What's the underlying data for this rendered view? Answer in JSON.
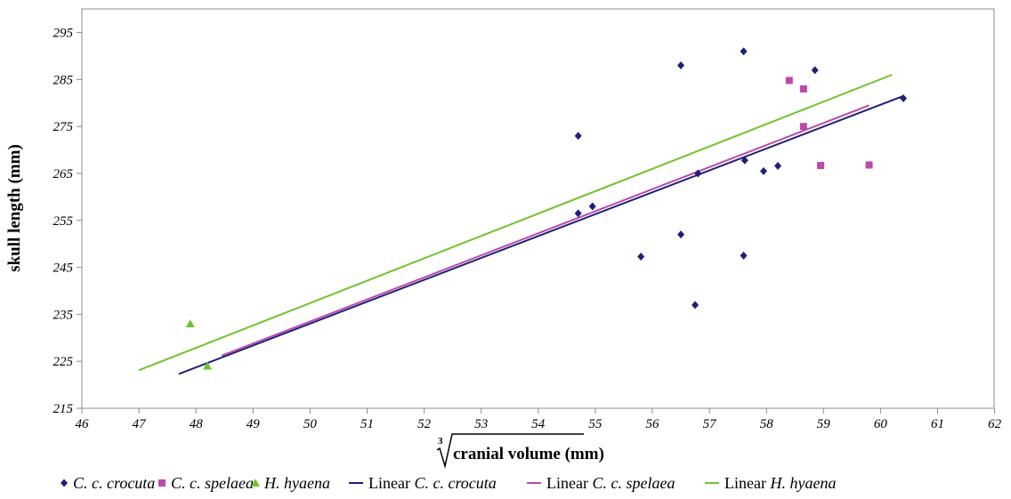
{
  "chart_data": {
    "type": "scatter",
    "title": "",
    "xlabel": "cranial volume (mm)",
    "xlabel_root_index": "3",
    "ylabel": "skull length (mm)",
    "xlim": [
      46,
      62
    ],
    "ylim": [
      215,
      300
    ],
    "xticks": [
      46,
      47,
      48,
      49,
      50,
      51,
      52,
      53,
      54,
      55,
      56,
      57,
      58,
      59,
      60,
      61,
      62
    ],
    "yticks": [
      215,
      225,
      235,
      245,
      255,
      265,
      275,
      285,
      295
    ],
    "grid": false,
    "legend_position": "bottom",
    "series": [
      {
        "name": "C. c. crocuta",
        "marker": "diamond",
        "color": "#1f1f7a",
        "points": [
          [
            54.7,
            273
          ],
          [
            54.7,
            256.5
          ],
          [
            54.95,
            258
          ],
          [
            55.8,
            247.3
          ],
          [
            56.5,
            252
          ],
          [
            56.5,
            288
          ],
          [
            56.75,
            237
          ],
          [
            56.8,
            265
          ],
          [
            57.6,
            247.5
          ],
          [
            57.6,
            291
          ],
          [
            57.62,
            267.8
          ],
          [
            57.95,
            265.5
          ],
          [
            58.2,
            266.6
          ],
          [
            58.85,
            287
          ],
          [
            60.4,
            281
          ]
        ]
      },
      {
        "name": "C. c. spelaea",
        "marker": "square",
        "color": "#bb4aa8",
        "points": [
          [
            58.4,
            284.8
          ],
          [
            58.65,
            283
          ],
          [
            58.65,
            275
          ],
          [
            58.95,
            266.7
          ],
          [
            59.8,
            266.8
          ]
        ]
      },
      {
        "name": "H. hyaena",
        "marker": "triangle",
        "color": "#72c22e",
        "points": [
          [
            47.9,
            233
          ],
          [
            48.2,
            224
          ]
        ]
      }
    ],
    "trendlines": [
      {
        "name": "Linear C. c. crocuta",
        "color": "#1f1f7a",
        "from": [
          47.7,
          222.3
        ],
        "to": [
          60.4,
          281.5
        ]
      },
      {
        "name": "Linear C. c. spelaea",
        "color": "#bb4aa8",
        "from": [
          48.45,
          226.2
        ],
        "to": [
          59.8,
          279.5
        ]
      },
      {
        "name": "Linear H. hyaena",
        "color": "#72c22e",
        "from": [
          47.0,
          223.1
        ],
        "to": [
          60.2,
          286
        ]
      }
    ],
    "legend": [
      {
        "label": "C. c. crocuta",
        "prefix": "",
        "kind": "marker",
        "marker": "diamond",
        "color": "#1f1f7a"
      },
      {
        "label": "C. c. spelaea",
        "prefix": "",
        "kind": "marker",
        "marker": "square",
        "color": "#bb4aa8"
      },
      {
        "label": "H. hyaena",
        "prefix": "",
        "kind": "marker",
        "marker": "triangle",
        "color": "#72c22e"
      },
      {
        "label": "C. c. crocuta",
        "prefix": "Linear ",
        "kind": "line",
        "color": "#1f1f7a"
      },
      {
        "label": "C. c. spelaea",
        "prefix": "Linear ",
        "kind": "line",
        "color": "#bb4aa8"
      },
      {
        "label": "H. hyaena",
        "prefix": "Linear ",
        "kind": "line",
        "color": "#72c22e"
      }
    ]
  }
}
